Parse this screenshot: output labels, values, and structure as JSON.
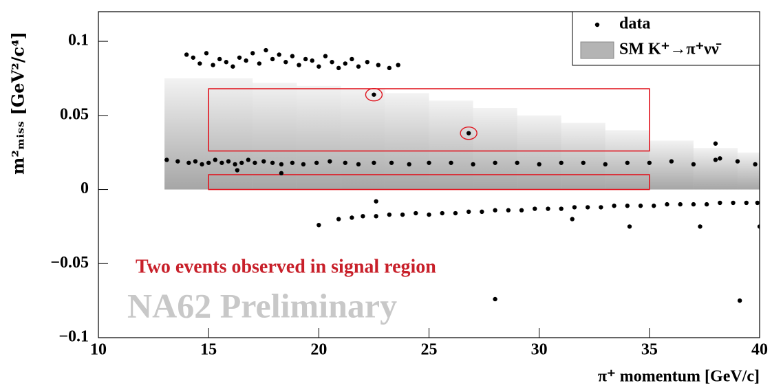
{
  "chart_data": {
    "type": "scatter",
    "x_label": "π⁺ momentum [GeV/c]",
    "y_label": "m²ₘᵢₛₛ [GeV²/c⁴]",
    "xlim": [
      10,
      40
    ],
    "ylim": [
      -0.1,
      0.12
    ],
    "xticks": [
      10,
      15,
      20,
      25,
      30,
      35,
      40
    ],
    "yticks": [
      {
        "value": -0.1,
        "label": "−0.1"
      },
      {
        "value": -0.05,
        "label": "−0.05"
      },
      0,
      0.05,
      0.1
    ],
    "legend": "top-right",
    "annotations": [
      "Two events observed in signal region",
      "NA62 Preliminary"
    ],
    "band": {
      "name": "SM K⁺→π⁺νν̄",
      "color": "#b4b4b4",
      "x": [
        14,
        16,
        18,
        20,
        22,
        24,
        26,
        28,
        30,
        32,
        34,
        36,
        38,
        40
      ],
      "low": [
        0,
        0,
        0,
        0,
        0,
        0,
        0,
        0,
        0,
        0,
        0,
        0,
        0,
        0
      ],
      "high": [
        0.075,
        0.075,
        0.072,
        0.07,
        0.068,
        0.065,
        0.06,
        0.055,
        0.05,
        0.045,
        0.04,
        0.033,
        0.028,
        0.025
      ]
    },
    "regions": [
      {
        "x": [
          15,
          35
        ],
        "y": [
          0.026,
          0.068
        ]
      },
      {
        "x": [
          15,
          35
        ],
        "y": [
          0,
          0.01
        ]
      }
    ],
    "region_color": "#e0141e",
    "series": [
      {
        "name": "data",
        "color": "#000000",
        "x": [
          14.0,
          14.3,
          14.6,
          14.9,
          15.2,
          15.5,
          15.8,
          16.1,
          16.4,
          16.7,
          17.0,
          17.3,
          17.6,
          17.9,
          18.2,
          18.5,
          18.8,
          19.1,
          19.4,
          19.7,
          20.0,
          20.3,
          20.6,
          20.9,
          21.2,
          21.5,
          21.8,
          22.2,
          22.7,
          23.2,
          23.6,
          13.1,
          13.6,
          14.1,
          14.4,
          14.7,
          15.0,
          15.3,
          15.6,
          15.9,
          16.2,
          16.5,
          16.8,
          17.1,
          17.5,
          17.9,
          18.3,
          18.8,
          19.3,
          19.9,
          20.5,
          21.2,
          21.8,
          22.5,
          23.3,
          24.1,
          25.0,
          26.0,
          27.0,
          28.0,
          29.0,
          30.0,
          31.0,
          32.0,
          33.0,
          34.0,
          35.0,
          36.0,
          37.0,
          38.0,
          39.0,
          39.8,
          20.0,
          20.9,
          21.5,
          22.0,
          22.6,
          23.2,
          23.8,
          24.4,
          25.0,
          25.6,
          26.2,
          26.8,
          27.4,
          28.0,
          28.6,
          29.2,
          29.8,
          30.4,
          31.0,
          31.6,
          32.2,
          32.8,
          33.4,
          34.0,
          34.6,
          35.2,
          35.8,
          36.4,
          37.0,
          37.6,
          38.2,
          38.8,
          39.4,
          39.9,
          18.3,
          16.3,
          22.6,
          38.0,
          38.2,
          28.0,
          39.1,
          40.0,
          34.1,
          31.5,
          37.3,
          22.5,
          26.8
        ],
        "values": [
          0.091,
          0.089,
          0.085,
          0.092,
          0.084,
          0.088,
          0.086,
          0.083,
          0.089,
          0.087,
          0.092,
          0.085,
          0.094,
          0.088,
          0.091,
          0.086,
          0.09,
          0.084,
          0.088,
          0.087,
          0.083,
          0.09,
          0.086,
          0.082,
          0.085,
          0.088,
          0.083,
          0.086,
          0.084,
          0.082,
          0.084,
          0.02,
          0.019,
          0.018,
          0.019,
          0.017,
          0.018,
          0.02,
          0.018,
          0.019,
          0.017,
          0.018,
          0.02,
          0.018,
          0.019,
          0.018,
          0.017,
          0.018,
          0.017,
          0.018,
          0.019,
          0.018,
          0.017,
          0.018,
          0.018,
          0.017,
          0.018,
          0.018,
          0.017,
          0.018,
          0.018,
          0.017,
          0.018,
          0.018,
          0.017,
          0.018,
          0.018,
          0.019,
          0.017,
          0.02,
          0.019,
          0.017,
          -0.024,
          -0.02,
          -0.019,
          -0.018,
          -0.018,
          -0.017,
          -0.017,
          -0.016,
          -0.017,
          -0.016,
          -0.016,
          -0.015,
          -0.015,
          -0.014,
          -0.014,
          -0.014,
          -0.013,
          -0.013,
          -0.013,
          -0.012,
          -0.012,
          -0.012,
          -0.011,
          -0.011,
          -0.011,
          -0.011,
          -0.01,
          -0.01,
          -0.01,
          -0.01,
          -0.009,
          -0.009,
          -0.009,
          -0.009,
          0.011,
          0.013,
          -0.008,
          0.031,
          0.021,
          -0.074,
          -0.075,
          -0.025,
          -0.025,
          -0.02,
          -0.025,
          0.064,
          0.038
        ]
      }
    ]
  }
}
